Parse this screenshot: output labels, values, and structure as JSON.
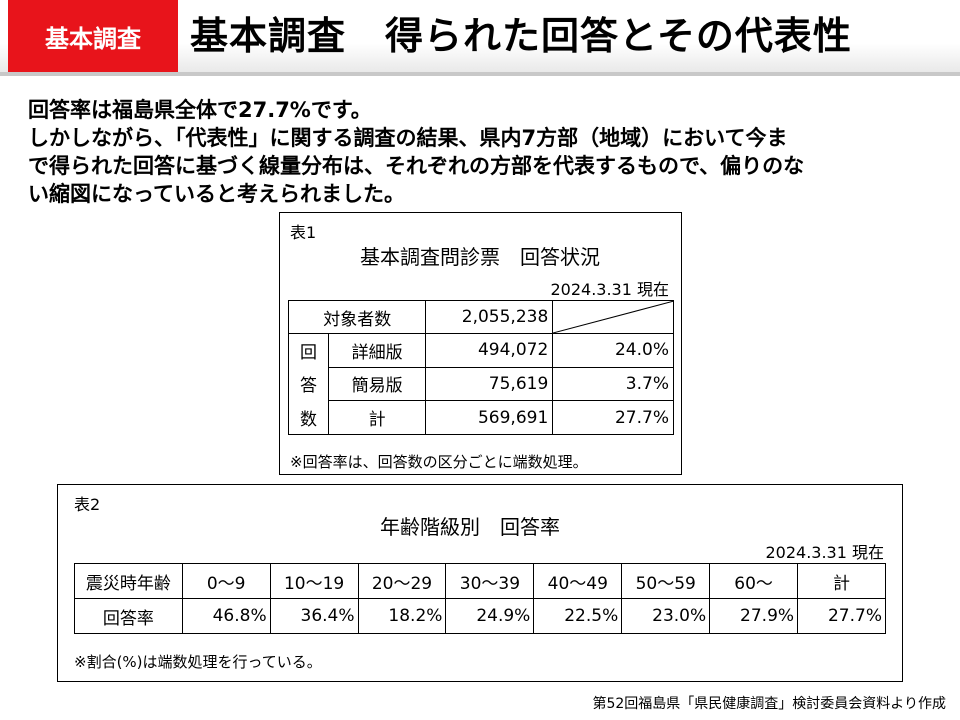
{
  "header": {
    "tag": "基本調査",
    "title": "基本調査　得られた回答とその代表性"
  },
  "intro": [
    "回答率は福島県全体で27.7%です。",
    "しかしながら、「代表性」に関する調査の結果、県内7方部（地域）において今ま",
    "で得られた回答に基づく線量分布は、それぞれの方部を代表するもので、偏りのな",
    "い縮図になっていると考えられました。"
  ],
  "table1": {
    "label": "表1",
    "title": "基本調査問診票　回答状況",
    "date": "2024.3.31 現在",
    "target_label": "対象者数",
    "target_value": "2,055,238",
    "group_label": [
      "回",
      "答",
      "数"
    ],
    "rows": [
      {
        "label": "詳細版",
        "count": "494,072",
        "rate": "24.0%"
      },
      {
        "label": "簡易版",
        "count": "75,619",
        "rate": "3.7%"
      },
      {
        "label": "計",
        "count": "569,691",
        "rate": "27.7%"
      }
    ],
    "note": "※回答率は、回答数の区分ごとに端数処理。"
  },
  "table2": {
    "label": "表2",
    "title": "年齢階級別　回答率",
    "date": "2024.3.31 現在",
    "header_label": "震災時年齢",
    "ages": [
      "0～9",
      "10～19",
      "20～29",
      "30～39",
      "40～49",
      "50～59",
      "60～",
      "計"
    ],
    "row_label": "回答率",
    "rates": [
      "46.8%",
      "36.4%",
      "18.2%",
      "24.9%",
      "22.5%",
      "23.0%",
      "27.9%",
      "27.7%"
    ],
    "note": "※割合(%)は端数処理を行っている。"
  },
  "footer": "第52回福島県「県民健康調査」検討委員会資料より作成",
  "colors": {
    "accent": "#e8141b"
  }
}
